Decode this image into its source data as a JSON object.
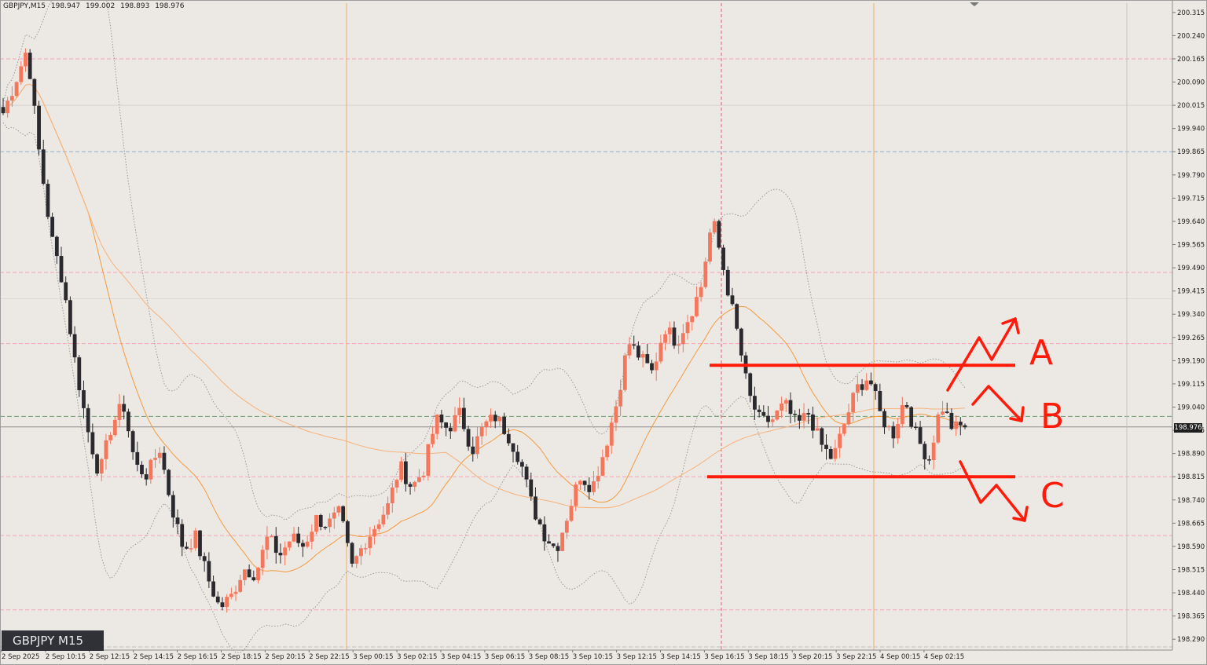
{
  "header": {
    "symbol_timeframe": "GBPJPY,M15",
    "ohlc": [
      "198.947",
      "199.002",
      "198.893",
      "198.976"
    ]
  },
  "symbol_badge": "GBPJPY M15",
  "current_price": "198.976",
  "colors": {
    "background": "#ece8e4",
    "bull_candle": "#f4775c",
    "bear_candle": "#2a2a2e",
    "ma": "#f49a3c",
    "bollinger": "#9a9a9a",
    "annotation": "#ff1a0a",
    "session_separator": "#f2b15c"
  },
  "chart_data": {
    "type": "candlestick",
    "title": "",
    "y_range": [
      198.255,
      200.345
    ],
    "y_ticks": [
      "200.315",
      "200.240",
      "200.165",
      "200.090",
      "200.015",
      "199.940",
      "199.865",
      "199.790",
      "199.715",
      "199.640",
      "199.565",
      "199.490",
      "199.415",
      "199.340",
      "199.265",
      "199.190",
      "199.115",
      "199.040",
      "198.965",
      "198.890",
      "198.815",
      "198.740",
      "198.665",
      "198.590",
      "198.515",
      "198.440",
      "198.365",
      "198.290"
    ],
    "x_ticks": [
      "2 Sep 2025",
      "2 Sep 10:15",
      "2 Sep 12:15",
      "2 Sep 14:15",
      "2 Sep 16:15",
      "2 Sep 18:15",
      "2 Sep 20:15",
      "2 Sep 22:15",
      "3 Sep 00:15",
      "3 Sep 02:15",
      "3 Sep 04:15",
      "3 Sep 06:15",
      "3 Sep 08:15",
      "3 Sep 10:15",
      "3 Sep 12:15",
      "3 Sep 14:15",
      "3 Sep 16:15",
      "3 Sep 18:15",
      "3 Sep 20:15",
      "3 Sep 22:15",
      "4 Sep 00:15",
      "4 Sep 02:15"
    ],
    "close_path": [
      199.99,
      200.09,
      200.2,
      199.86,
      199.59,
      199.44,
      199.18,
      198.97,
      198.82,
      198.98,
      199.05,
      198.85,
      198.82,
      198.91,
      198.72,
      198.58,
      198.62,
      198.49,
      198.39,
      198.43,
      198.52,
      198.5,
      198.62,
      198.56,
      198.62,
      198.59,
      198.68,
      198.66,
      198.7,
      198.52,
      198.6,
      198.66,
      198.72,
      198.85,
      198.78,
      198.84,
      199.0,
      198.97,
      199.02,
      198.9,
      198.98,
      199.01,
      198.95,
      198.87,
      198.72,
      198.63,
      198.58,
      198.7,
      198.82,
      198.78,
      198.9,
      199.05,
      199.25,
      199.2,
      199.15,
      199.3,
      199.25,
      199.33,
      199.42,
      199.65,
      199.47,
      199.29,
      199.08,
      198.99,
      199.0,
      199.05,
      198.98,
      199.02,
      198.92,
      198.87,
      198.99,
      199.1,
      199.14,
      199.01,
      198.95,
      199.07,
      198.94,
      198.87,
      199.05,
      198.97,
      198.98
    ],
    "series": [
      {
        "name": "",
        "type": "line",
        "role": "fast moving average"
      },
      {
        "name": "",
        "type": "line",
        "role": "slow moving average"
      },
      {
        "name": "",
        "type": "band",
        "role": "bollinger bands"
      }
    ],
    "horizontal_levels": {
      "resistance": 199.175,
      "support": 198.815
    },
    "annotations": [
      {
        "label": "A",
        "text": "A"
      },
      {
        "label": "B",
        "text": "B"
      },
      {
        "label": "C",
        "text": "C"
      }
    ],
    "grid": false
  }
}
